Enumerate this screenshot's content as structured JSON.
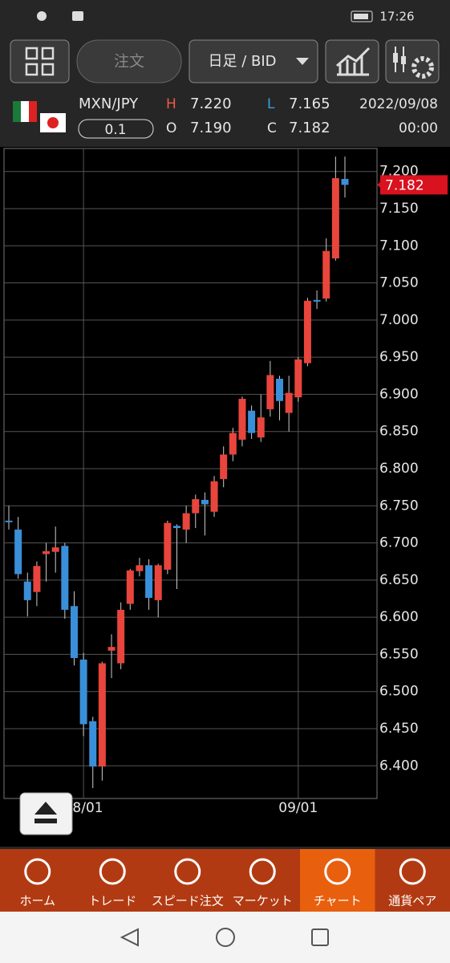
{
  "status": {
    "time": "17:26"
  },
  "toolbar": {
    "order": "注文",
    "timeframe": "日足 / BID"
  },
  "symbol": {
    "pair": "MXN/JPY",
    "lot": "0.1",
    "high_label": "H",
    "high": "7.220",
    "low_label": "L",
    "low": "7.165",
    "open_label": "O",
    "open": "7.190",
    "close_label": "C",
    "close": "7.182",
    "date": "2022/09/08",
    "time": "00:00"
  },
  "chart_data": {
    "type": "candlestick",
    "categories": [
      null,
      null,
      null,
      null,
      null,
      null,
      null,
      null,
      "08/01",
      null,
      null,
      null,
      null,
      null,
      null,
      null,
      null,
      null,
      null,
      null,
      null,
      null,
      null,
      null,
      null,
      null,
      null,
      null,
      null,
      null,
      null,
      "09/01",
      null,
      null,
      null,
      null,
      null
    ],
    "open": [
      6.73,
      6.718,
      6.648,
      6.634,
      6.685,
      6.688,
      6.696,
      6.615,
      6.543,
      6.46,
      6.399,
      6.555,
      6.538,
      6.618,
      6.662,
      6.67,
      6.623,
      6.664,
      6.723,
      6.718,
      6.74,
      6.758,
      6.742,
      6.786,
      6.819,
      6.839,
      6.878,
      6.842,
      6.88,
      6.921,
      6.875,
      6.896,
      6.942,
      7.027,
      7.029,
      7.083,
      7.19
    ],
    "high": [
      6.75,
      6.735,
      6.66,
      6.675,
      6.7,
      6.722,
      6.7,
      6.635,
      6.552,
      6.466,
      6.54,
      6.577,
      6.62,
      6.665,
      6.68,
      6.678,
      6.672,
      6.73,
      6.725,
      6.75,
      6.765,
      6.768,
      6.79,
      6.83,
      6.855,
      6.897,
      6.885,
      6.9,
      6.945,
      6.925,
      6.925,
      6.95,
      7.03,
      7.04,
      7.11,
      7.22,
      7.22
    ],
    "low": [
      6.718,
      6.652,
      6.601,
      6.615,
      6.648,
      6.66,
      6.598,
      6.535,
      6.44,
      6.37,
      6.38,
      6.518,
      6.53,
      6.61,
      6.655,
      6.61,
      6.6,
      6.658,
      6.638,
      6.7,
      6.72,
      6.71,
      6.735,
      6.775,
      6.81,
      6.83,
      6.84,
      6.836,
      6.87,
      6.865,
      6.85,
      6.89,
      6.938,
      7.015,
      7.025,
      7.08,
      7.165
    ],
    "close": [
      6.729,
      6.658,
      6.623,
      6.669,
      6.689,
      6.694,
      6.61,
      6.545,
      6.456,
      6.399,
      6.538,
      6.56,
      6.61,
      6.663,
      6.67,
      6.626,
      6.67,
      6.727,
      6.72,
      6.74,
      6.759,
      6.752,
      6.783,
      6.819,
      6.848,
      6.894,
      6.848,
      6.869,
      6.926,
      6.891,
      6.902,
      6.947,
      7.026,
      7.025,
      7.093,
      7.191,
      7.182
    ],
    "up_color": "#e8453c",
    "down_color": "#3a8fd9",
    "ylim": [
      6.356,
      7.231
    ],
    "yticks": [
      {
        "value": 6.4,
        "label": "6.400"
      },
      {
        "value": 6.45,
        "label": "6.450"
      },
      {
        "value": 6.5,
        "label": "6.500"
      },
      {
        "value": 6.55,
        "label": "6.550"
      },
      {
        "value": 6.6,
        "label": "6.600"
      },
      {
        "value": 6.65,
        "label": "6.650"
      },
      {
        "value": 6.7,
        "label": "6.700"
      },
      {
        "value": 6.75,
        "label": "6.750"
      },
      {
        "value": 6.8,
        "label": "6.800"
      },
      {
        "value": 6.85,
        "label": "6.850"
      },
      {
        "value": 6.9,
        "label": "6.900"
      },
      {
        "value": 6.95,
        "label": "6.950"
      },
      {
        "value": 7.0,
        "label": "7.000"
      },
      {
        "value": 7.05,
        "label": "7.050"
      },
      {
        "value": 7.1,
        "label": "7.100"
      },
      {
        "value": 7.15,
        "label": "7.150"
      },
      {
        "value": 7.2,
        "label": "7.200"
      }
    ],
    "grid": true
  },
  "nav": [
    "ホーム",
    "トレード",
    "スピード注文",
    "マーケット",
    "チャート",
    "通貨ペア"
  ]
}
